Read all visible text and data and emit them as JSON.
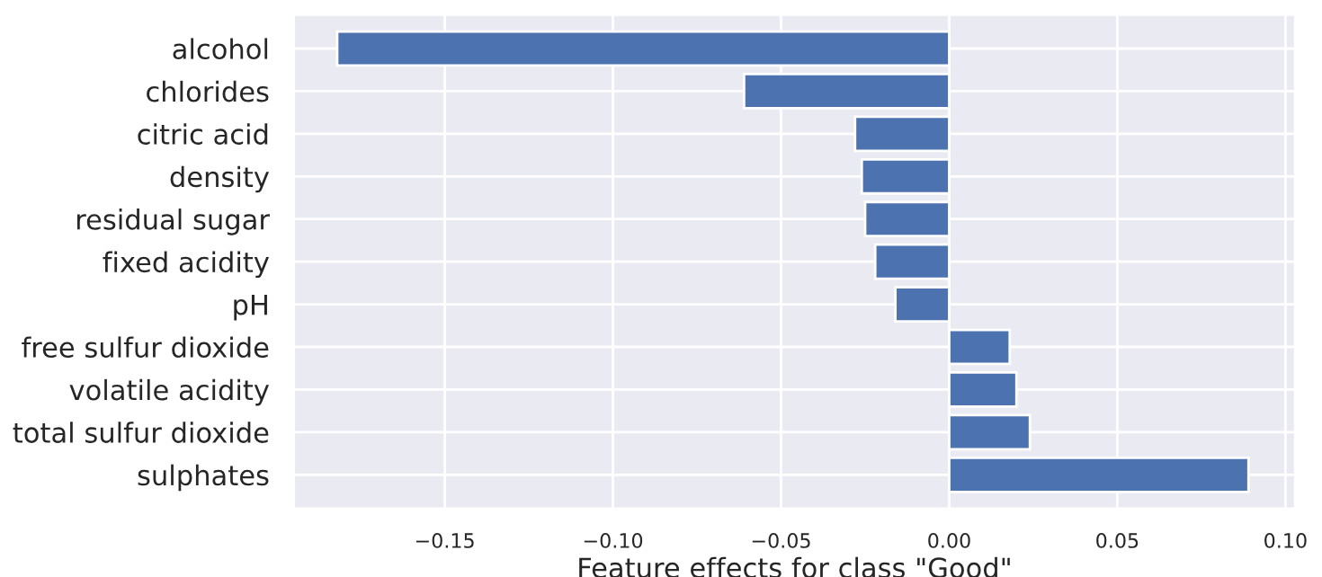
{
  "chart_data": {
    "type": "bar",
    "orientation": "horizontal",
    "xlabel": "Feature effects for class \"Good\"",
    "categories": [
      "alcohol",
      "chlorides",
      "citric acid",
      "density",
      "residual sugar",
      "fixed acidity",
      "pH",
      "free sulfur dioxide",
      "volatile acidity",
      "total sulfur dioxide",
      "sulphates"
    ],
    "values": [
      -0.182,
      -0.061,
      -0.028,
      -0.026,
      -0.025,
      -0.022,
      -0.016,
      0.018,
      0.02,
      0.024,
      0.089
    ],
    "color": "#4c72b0",
    "xlim": [
      -0.195,
      0.103
    ],
    "xticks": [
      {
        "value": -0.15,
        "label": "−0.15"
      },
      {
        "value": -0.1,
        "label": "−0.10"
      },
      {
        "value": -0.05,
        "label": "−0.05"
      },
      {
        "value": 0,
        "label": "0.00"
      },
      {
        "value": 0.05,
        "label": "0.05"
      },
      {
        "value": 0.1,
        "label": "0.10"
      }
    ],
    "grid": true
  }
}
